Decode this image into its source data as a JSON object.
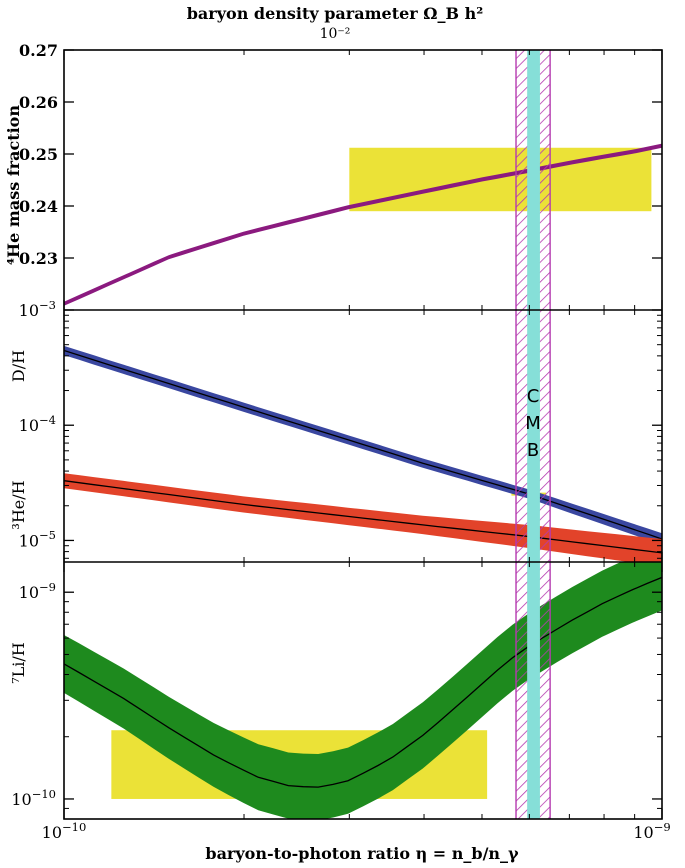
{
  "chart_data": {
    "type": "line",
    "top_axis_label": "baryon density parameter Ω_B h²",
    "top_axis_tick": "10⁻²",
    "xlabel": "baryon-to-photon ratio η = n_b/n_γ",
    "xscale": "log",
    "xlim": [
      1e-10,
      1e-09
    ],
    "x_ticks": [
      {
        "value": 1e-10,
        "mant": "10",
        "exp": "−10"
      },
      {
        "value": 1e-09,
        "mant": "10",
        "exp": "−9"
      }
    ],
    "cmb_band": {
      "label_letters": [
        "C",
        "M",
        "B"
      ],
      "center": 6.1e-10,
      "range": [
        5.95e-10,
        6.25e-10
      ],
      "hatch_range": [
        5.7e-10,
        6.5e-10
      ],
      "fill_color": "#86dfd8",
      "hatch_color": "#b53ab0"
    },
    "panels": [
      {
        "id": "he4",
        "ylabel": "⁴He mass fraction",
        "yscale": "linear",
        "ylim": [
          0.22,
          0.27
        ],
        "y_ticks": [
          {
            "value": 0.23,
            "label": "0.23"
          },
          {
            "value": 0.24,
            "label": "0.24"
          },
          {
            "value": 0.25,
            "label": "0.25"
          },
          {
            "value": 0.26,
            "label": "0.26"
          },
          {
            "value": 0.27,
            "label": "0.27"
          }
        ],
        "observation_box": {
          "x": [
            3e-10,
            9.6e-10
          ],
          "y": [
            0.239,
            0.2512
          ],
          "color": "#ebe237"
        },
        "series": [
          {
            "color": "#8b1a7f",
            "x": [
              1e-10,
              1.5e-10,
              2e-10,
              3e-10,
              4e-10,
              5e-10,
              6e-10,
              7e-10,
              8e-10,
              9e-10,
              1e-09
            ],
            "y": [
              0.2212,
              0.2302,
              0.2347,
              0.2398,
              0.2428,
              0.2451,
              0.2468,
              0.2483,
              0.2495,
              0.2505,
              0.2516
            ],
            "band": [
              0.0004,
              0.0004,
              0.0004,
              0.0004,
              0.0004,
              0.0004,
              0.0004,
              0.0004,
              0.0004,
              0.0004,
              0.0004
            ]
          }
        ]
      },
      {
        "id": "d_he3",
        "ylabel_upper": "D/H",
        "ylabel_lower": "³He/H",
        "yscale": "log",
        "ylim": [
          6.5e-06,
          0.001
        ],
        "y_ticks": [
          {
            "value": 0.001,
            "mant": "10",
            "exp": "−3"
          },
          {
            "value": 0.0001,
            "mant": "10",
            "exp": "−4"
          },
          {
            "value": 1e-05,
            "mant": "10",
            "exp": "−5"
          }
        ],
        "observation_box": {
          "x": [
            5.6e-10,
            6.4e-10
          ],
          "y": [
            2.45e-05,
            2.6e-05
          ],
          "color": "#ebe237"
        },
        "series": [
          {
            "name": "D/H",
            "color": "#3a47a0",
            "x": [
              1e-10,
              2e-10,
              4e-10,
              6e-10,
              1e-09
            ],
            "y": [
              0.000445,
              0.000143,
              4.65e-05,
              2.52e-05,
              1.03e-05
            ],
            "band": [
              0.04,
              0.04,
              0.04,
              0.04,
              0.05
            ]
          },
          {
            "name": "³He/H",
            "color": "#e2432a",
            "x": [
              1e-10,
              2e-10,
              4e-10,
              6e-10,
              1e-09
            ],
            "y": [
              3.3e-05,
              2.05e-05,
              1.36e-05,
              1.08e-05,
              7.8e-06
            ],
            "band": [
              0.065,
              0.07,
              0.08,
              0.1,
              0.12
            ]
          }
        ]
      },
      {
        "id": "li7",
        "ylabel": "⁷Li/H",
        "yscale": "log",
        "ylim": [
          8e-11,
          1.4e-09
        ],
        "y_ticks": [
          {
            "value": 1e-10,
            "mant": "10",
            "exp": "−10"
          },
          {
            "value": 1e-09,
            "mant": "10",
            "exp": "−9"
          }
        ],
        "observation_box": {
          "x": [
            1.2e-10,
            5.1e-10
          ],
          "y": [
            1e-10,
            2.15e-10
          ],
          "color": "#ebe237"
        },
        "series": [
          {
            "name": "⁷Li/H",
            "color": "#1e8a1e",
            "x": [
              1e-10,
              1.25e-10,
              1.5e-10,
              1.8e-10,
              2.1e-10,
              2.4e-10,
              2.7e-10,
              3e-10,
              3.5e-10,
              4e-10,
              4.5e-10,
              5e-10,
              5.5e-10,
              6e-10,
              7e-10,
              8e-10,
              9e-10,
              1e-09
            ],
            "y": [
              4.5e-10,
              3.1e-10,
              2.2e-10,
              1.6e-10,
              1.28e-10,
              1.15e-10,
              1.14e-10,
              1.23e-10,
              1.55e-10,
              2.05e-10,
              2.75e-10,
              3.6e-10,
              4.6e-10,
              5.5e-10,
              7.2e-10,
              8.9e-10,
              1.04e-09,
              1.18e-09
            ],
            "band": [
              0.14,
              0.145,
              0.15,
              0.155,
              0.16,
              0.16,
              0.16,
              0.16,
              0.16,
              0.16,
              0.16,
              0.16,
              0.16,
              0.16,
              0.16,
              0.16,
              0.16,
              0.16
            ]
          }
        ]
      }
    ]
  }
}
